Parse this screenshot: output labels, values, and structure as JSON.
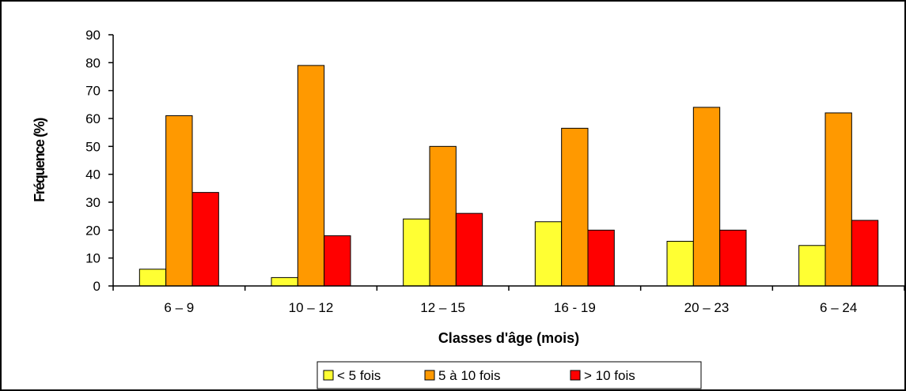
{
  "chart_data": {
    "type": "bar",
    "title": "",
    "xlabel": "Classes d'âge (mois)",
    "ylabel": "Fréquence (%)",
    "categories": [
      "6 – 9",
      "10 – 12",
      "12 – 15",
      "16 - 19",
      "20 – 23",
      "6 – 24"
    ],
    "ylim": [
      0,
      90
    ],
    "yticks": [
      0,
      10,
      20,
      30,
      40,
      50,
      60,
      70,
      80,
      90
    ],
    "grid": false,
    "legend_position": "bottom",
    "series": [
      {
        "name": "< 5 fois",
        "color": "#FFFF33",
        "values": [
          6,
          3,
          24,
          23,
          16,
          14.5
        ]
      },
      {
        "name": "5 à 10 fois",
        "color": "#FF9900",
        "values": [
          61,
          79,
          50,
          56.5,
          64,
          62
        ]
      },
      {
        "name": "> 10 fois",
        "color": "#FF0000",
        "values": [
          33.5,
          18,
          26,
          20,
          20,
          23.5
        ]
      }
    ]
  }
}
